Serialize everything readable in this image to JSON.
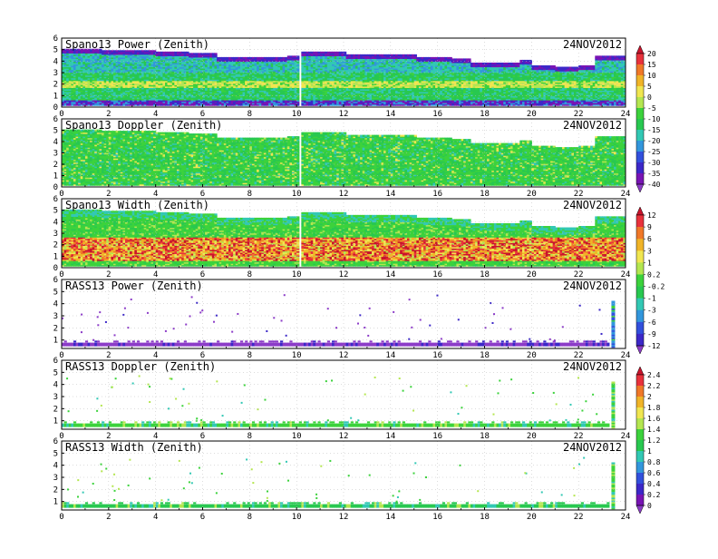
{
  "chart_data": [
    {
      "type": "heatmap",
      "title": "Spano13 Power (Zenith)",
      "date": "24NOV2012",
      "x_ticks": [
        "0",
        "2",
        "4",
        "6",
        "8",
        "10",
        "12",
        "14",
        "16",
        "18",
        "20",
        "22",
        "24"
      ],
      "y_ticks": [
        "0",
        "1",
        "2",
        "3",
        "4",
        "5",
        "6"
      ],
      "xlim": [
        0,
        24
      ],
      "ylim": [
        0,
        6
      ],
      "pattern": "wind",
      "scale": "power",
      "top_height_profile": [
        [
          0,
          5.0
        ],
        [
          1.7,
          4.9
        ],
        [
          4,
          4.8
        ],
        [
          5.3,
          4.6
        ],
        [
          6.5,
          4.3
        ],
        [
          9.5,
          4.4
        ],
        [
          10,
          4.8
        ],
        [
          12,
          4.5
        ],
        [
          15,
          4.3
        ],
        [
          16.5,
          4.2
        ],
        [
          17.3,
          3.8
        ],
        [
          19.5,
          4.0
        ],
        [
          20,
          3.6
        ],
        [
          21,
          3.5
        ],
        [
          22,
          3.6
        ],
        [
          22.7,
          4.4
        ],
        [
          24,
          4.3
        ]
      ],
      "dominant_values": {
        "background": -20,
        "band_height": 2.0,
        "band": -5,
        "top_edge": -40,
        "bottom_edge": -40
      }
    },
    {
      "type": "heatmap",
      "title": "Spano13 Doppler (Zenith)",
      "date": "24NOV2012",
      "x_ticks": [
        "0",
        "2",
        "4",
        "6",
        "8",
        "10",
        "12",
        "14",
        "16",
        "18",
        "20",
        "22",
        "24"
      ],
      "y_ticks": [
        "0",
        "1",
        "2",
        "3",
        "4",
        "5",
        "6"
      ],
      "xlim": [
        0,
        24
      ],
      "ylim": [
        0,
        6
      ],
      "pattern": "wind",
      "scale": "power",
      "top_height_profile": [
        [
          0,
          5.0
        ],
        [
          1.7,
          4.9
        ],
        [
          4,
          4.8
        ],
        [
          5.3,
          4.6
        ],
        [
          6.5,
          4.3
        ],
        [
          9.5,
          4.4
        ],
        [
          10,
          4.8
        ],
        [
          12,
          4.5
        ],
        [
          15,
          4.3
        ],
        [
          16.5,
          4.2
        ],
        [
          17.3,
          3.8
        ],
        [
          19.5,
          4.0
        ],
        [
          20,
          3.6
        ],
        [
          21,
          3.5
        ],
        [
          22,
          3.6
        ],
        [
          22.7,
          4.4
        ],
        [
          24,
          4.3
        ]
      ],
      "dominant_values": {
        "background": -15
      }
    },
    {
      "type": "heatmap",
      "title": "Spano13 Width (Zenith)",
      "date": "24NOV2012",
      "x_ticks": [
        "0",
        "2",
        "4",
        "6",
        "8",
        "10",
        "12",
        "14",
        "16",
        "18",
        "20",
        "22",
        "24"
      ],
      "y_ticks": [
        "0",
        "1",
        "2",
        "3",
        "4",
        "5",
        "6"
      ],
      "xlim": [
        0,
        24
      ],
      "ylim": [
        0,
        6
      ],
      "pattern": "wind",
      "scale": "width",
      "top_height_profile": [
        [
          0,
          5.0
        ],
        [
          1.7,
          4.9
        ],
        [
          4,
          4.8
        ],
        [
          5.3,
          4.6
        ],
        [
          6.5,
          4.3
        ],
        [
          9.5,
          4.4
        ],
        [
          10,
          4.8
        ],
        [
          12,
          4.5
        ],
        [
          15,
          4.3
        ],
        [
          16.5,
          4.2
        ],
        [
          17.3,
          3.8
        ],
        [
          19.5,
          4.0
        ],
        [
          20,
          3.6
        ],
        [
          21,
          3.5
        ],
        [
          22,
          3.6
        ],
        [
          22.7,
          4.4
        ],
        [
          24,
          4.3
        ]
      ],
      "dominant_values": {
        "background": 0.2,
        "band_height": 1.8,
        "band": 6
      }
    },
    {
      "type": "heatmap",
      "title": "RASS13 Power (Zenith)",
      "date": "24NOV2012",
      "x_ticks": [
        "0",
        "2",
        "4",
        "6",
        "8",
        "10",
        "12",
        "14",
        "16",
        "18",
        "20",
        "22",
        "24"
      ],
      "y_ticks": [
        "1",
        "2",
        "3",
        "4",
        "5",
        "6"
      ],
      "xlim": [
        0,
        24
      ],
      "ylim": [
        0.3,
        6
      ],
      "pattern": "rass",
      "scale": "width",
      "dominant_values": {
        "line_height": 0.7,
        "line": -12,
        "spike_time": 23.4
      }
    },
    {
      "type": "heatmap",
      "title": "RASS13 Doppler (Zenith)",
      "date": "24NOV2012",
      "x_ticks": [
        "0",
        "2",
        "4",
        "6",
        "8",
        "10",
        "12",
        "14",
        "16",
        "18",
        "20",
        "22",
        "24"
      ],
      "y_ticks": [
        "1",
        "2",
        "3",
        "4",
        "5",
        "6"
      ],
      "xlim": [
        0,
        24
      ],
      "ylim": [
        0.3,
        6
      ],
      "pattern": "rass",
      "scale": "rass",
      "dominant_values": {
        "line_height": 0.7,
        "line": 1.2,
        "spike_time": 23.4
      }
    },
    {
      "type": "heatmap",
      "title": "RASS13 Width (Zenith)",
      "date": "24NOV2012",
      "x_ticks": [
        "0",
        "2",
        "4",
        "6",
        "8",
        "10",
        "12",
        "14",
        "16",
        "18",
        "20",
        "22",
        "24"
      ],
      "y_ticks": [
        "1",
        "2",
        "3",
        "4",
        "5",
        "6"
      ],
      "xlim": [
        0,
        24
      ],
      "ylim": [
        0.3,
        6
      ],
      "pattern": "rass",
      "scale": "rass",
      "dominant_values": {
        "line_height": 0.7,
        "line": 0.9,
        "spike_time": 23.4
      }
    }
  ],
  "colorbars": {
    "power": {
      "labels": [
        "20",
        "15",
        "10",
        "5",
        "0",
        "-5",
        "-10",
        "-15",
        "-20",
        "-25",
        "-30",
        "-35",
        "-40"
      ],
      "colors": [
        "#c8142c",
        "#e8323c",
        "#f07828",
        "#f0b428",
        "#f0e650",
        "#b4e650",
        "#3cd23c",
        "#28c850",
        "#32c8b4",
        "#3296dc",
        "#3250dc",
        "#3c28c8",
        "#7814b4",
        "#8c3cc8"
      ]
    },
    "width": {
      "labels": [
        "12",
        "9",
        "6",
        "3",
        "1",
        "0.2",
        "-0.2",
        "-1",
        "-3",
        "-6",
        "-9",
        "-12"
      ],
      "colors": [
        "#c8142c",
        "#e8323c",
        "#f07828",
        "#f0b428",
        "#f0e650",
        "#b4e650",
        "#3cd23c",
        "#28c850",
        "#32c8b4",
        "#3296dc",
        "#3250dc",
        "#3c28c8",
        "#8c3cc8"
      ]
    },
    "rass": {
      "labels": [
        "2.4",
        "2.2",
        "2",
        "1.8",
        "1.6",
        "1.4",
        "1.2",
        "1",
        "0.8",
        "0.6",
        "0.4",
        "0.2",
        "0"
      ],
      "colors": [
        "#c8142c",
        "#e8323c",
        "#f07828",
        "#f0b428",
        "#f0e650",
        "#b4e650",
        "#3cd23c",
        "#28c850",
        "#32c8b4",
        "#3296dc",
        "#3250dc",
        "#3c28c8",
        "#7814b4",
        "#8c3cc8"
      ]
    }
  }
}
